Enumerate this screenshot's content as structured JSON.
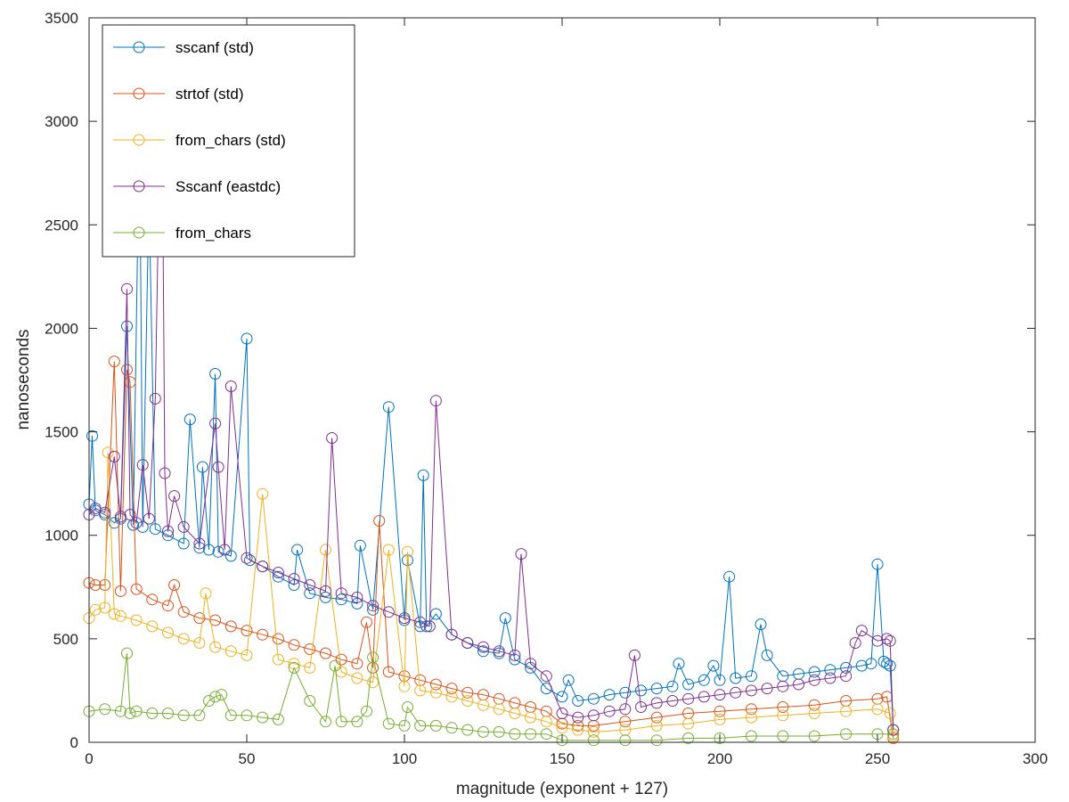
{
  "chart_data": {
    "type": "line",
    "title": "",
    "xlabel": "magnitude (exponent + 127)",
    "ylabel": "nanoseconds",
    "xlim": [
      0,
      300
    ],
    "ylim": [
      0,
      3500
    ],
    "xticks": [
      "0",
      "50",
      "100",
      "150",
      "200",
      "250",
      "300"
    ],
    "yticks": [
      "0",
      "500",
      "1000",
      "1500",
      "2000",
      "2500",
      "3000",
      "3500"
    ],
    "grid": false,
    "legend_position": "top-left",
    "marker": "circle",
    "series": [
      {
        "name": "sscanf (std)",
        "color": "#0072bd",
        "x": [
          0,
          1,
          2,
          5,
          8,
          10,
          12,
          14,
          16,
          17,
          19,
          21,
          25,
          30,
          32,
          35,
          36,
          38,
          40,
          41,
          45,
          50,
          51,
          55,
          60,
          65,
          66,
          70,
          75,
          80,
          85,
          86,
          90,
          95,
          100,
          101,
          105,
          106,
          107,
          110,
          115,
          120,
          125,
          130,
          132,
          135,
          140,
          145,
          150,
          152,
          155,
          160,
          165,
          170,
          175,
          180,
          185,
          187,
          190,
          195,
          198,
          200,
          203,
          205,
          210,
          213,
          215,
          220,
          225,
          230,
          235,
          240,
          245,
          248,
          250,
          252,
          253,
          254,
          255
        ],
        "y": [
          1150,
          1480,
          1120,
          1100,
          1060,
          1080,
          2010,
          1050,
          3000,
          1040,
          2650,
          1030,
          1000,
          960,
          1560,
          940,
          1330,
          930,
          1780,
          920,
          900,
          1950,
          880,
          850,
          800,
          760,
          930,
          720,
          700,
          690,
          670,
          950,
          640,
          1620,
          590,
          880,
          560,
          1290,
          560,
          620,
          520,
          480,
          440,
          430,
          600,
          400,
          360,
          260,
          220,
          300,
          200,
          210,
          230,
          240,
          250,
          260,
          270,
          380,
          280,
          300,
          370,
          300,
          800,
          310,
          320,
          570,
          420,
          320,
          330,
          340,
          350,
          360,
          370,
          380,
          860,
          390,
          380,
          370,
          60
        ]
      },
      {
        "name": "strtof (std)",
        "color": "#d95319",
        "x": [
          0,
          2,
          5,
          8,
          10,
          12,
          13,
          15,
          20,
          25,
          27,
          30,
          35,
          40,
          45,
          50,
          55,
          60,
          65,
          70,
          75,
          80,
          85,
          88,
          90,
          92,
          95,
          100,
          105,
          110,
          115,
          120,
          125,
          130,
          135,
          140,
          145,
          150,
          155,
          160,
          170,
          180,
          190,
          200,
          210,
          220,
          230,
          240,
          250,
          253,
          255
        ],
        "y": [
          770,
          760,
          760,
          1840,
          730,
          1800,
          1740,
          740,
          690,
          660,
          760,
          630,
          600,
          590,
          560,
          540,
          520,
          500,
          470,
          450,
          430,
          400,
          380,
          580,
          360,
          1070,
          340,
          320,
          300,
          280,
          260,
          240,
          230,
          210,
          190,
          170,
          150,
          90,
          80,
          80,
          100,
          120,
          140,
          150,
          160,
          170,
          180,
          200,
          210,
          220,
          20
        ]
      },
      {
        "name": "from_chars (std)",
        "color": "#edb120",
        "x": [
          0,
          2,
          5,
          6,
          8,
          10,
          15,
          20,
          25,
          30,
          35,
          37,
          40,
          45,
          50,
          55,
          60,
          65,
          70,
          75,
          80,
          85,
          90,
          95,
          100,
          101,
          105,
          110,
          115,
          120,
          125,
          130,
          135,
          140,
          145,
          150,
          155,
          160,
          170,
          180,
          190,
          200,
          210,
          220,
          230,
          240,
          250,
          254,
          255
        ],
        "y": [
          600,
          640,
          650,
          1400,
          620,
          610,
          590,
          560,
          530,
          500,
          480,
          720,
          460,
          440,
          420,
          1200,
          400,
          380,
          360,
          930,
          340,
          310,
          290,
          930,
          270,
          920,
          250,
          240,
          220,
          200,
          180,
          160,
          140,
          120,
          100,
          70,
          60,
          50,
          60,
          80,
          90,
          110,
          120,
          130,
          140,
          150,
          160,
          140,
          30
        ]
      },
      {
        "name": "Sscanf (eastdc)",
        "color": "#7e2f8e",
        "x": [
          0,
          2,
          5,
          8,
          10,
          12,
          13,
          15,
          17,
          19,
          21,
          23,
          24,
          25,
          27,
          30,
          35,
          40,
          41,
          43,
          45,
          50,
          55,
          60,
          65,
          70,
          75,
          77,
          80,
          85,
          90,
          95,
          100,
          105,
          108,
          110,
          115,
          120,
          125,
          130,
          135,
          137,
          140,
          145,
          150,
          155,
          160,
          165,
          170,
          173,
          175,
          180,
          185,
          190,
          195,
          200,
          205,
          210,
          215,
          220,
          225,
          230,
          235,
          240,
          243,
          245,
          250,
          253,
          254,
          255
        ],
        "y": [
          1100,
          1130,
          1110,
          1380,
          1090,
          2190,
          1100,
          1060,
          1340,
          1080,
          1660,
          3410,
          1300,
          1020,
          1190,
          1040,
          960,
          1540,
          1330,
          930,
          1720,
          890,
          850,
          820,
          790,
          760,
          730,
          1470,
          720,
          700,
          660,
          630,
          600,
          580,
          560,
          1650,
          520,
          480,
          460,
          440,
          420,
          910,
          380,
          320,
          140,
          120,
          130,
          150,
          160,
          420,
          170,
          190,
          200,
          210,
          220,
          230,
          240,
          250,
          260,
          270,
          280,
          300,
          310,
          320,
          480,
          540,
          490,
          500,
          490,
          60
        ]
      },
      {
        "name": "from_chars",
        "color": "#77ac30",
        "x": [
          0,
          5,
          10,
          12,
          13,
          15,
          20,
          25,
          30,
          35,
          38,
          40,
          42,
          45,
          50,
          55,
          60,
          65,
          70,
          75,
          78,
          80,
          85,
          88,
          90,
          95,
          100,
          101,
          105,
          110,
          115,
          120,
          125,
          130,
          135,
          140,
          145,
          150,
          160,
          170,
          180,
          190,
          200,
          210,
          220,
          230,
          240,
          250,
          255
        ],
        "y": [
          150,
          160,
          150,
          430,
          140,
          150,
          140,
          140,
          130,
          130,
          200,
          220,
          230,
          130,
          130,
          120,
          110,
          360,
          200,
          100,
          370,
          100,
          100,
          150,
          410,
          90,
          80,
          170,
          80,
          80,
          70,
          60,
          50,
          50,
          40,
          40,
          40,
          10,
          10,
          10,
          10,
          20,
          20,
          30,
          30,
          30,
          40,
          40,
          40
        ]
      }
    ]
  }
}
